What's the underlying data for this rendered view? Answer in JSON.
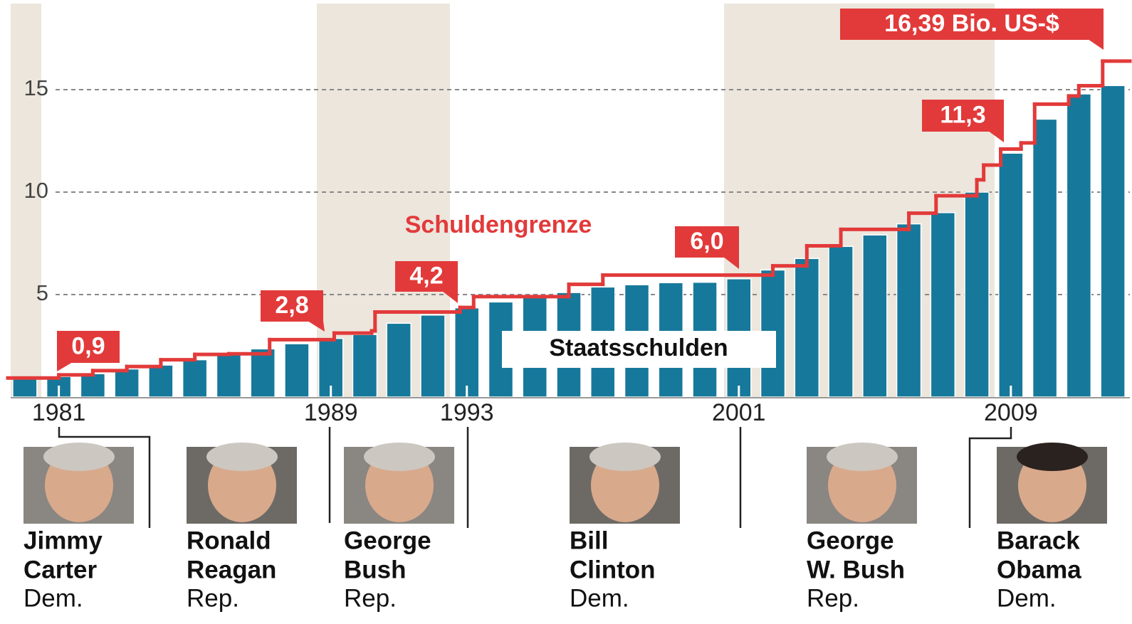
{
  "chart_data": {
    "type": "bar",
    "x": [
      1980,
      1981,
      1982,
      1983,
      1984,
      1985,
      1986,
      1987,
      1988,
      1989,
      1990,
      1991,
      1992,
      1993,
      1994,
      1995,
      1996,
      1997,
      1998,
      1999,
      2000,
      2001,
      2002,
      2003,
      2004,
      2005,
      2006,
      2007,
      2008,
      2009,
      2010,
      2011,
      2012
    ],
    "series": [
      {
        "name": "Staatsschulden",
        "color": "#16799b",
        "values": [
          0.91,
          1.0,
          1.14,
          1.37,
          1.56,
          1.82,
          2.12,
          2.35,
          2.6,
          2.86,
          3.05,
          3.6,
          4.0,
          4.35,
          4.64,
          4.85,
          5.1,
          5.37,
          5.48,
          5.58,
          5.6,
          5.77,
          6.2,
          6.76,
          7.35,
          7.91,
          8.45,
          9.0,
          10.0,
          11.9,
          13.56,
          14.79,
          15.2
        ]
      },
      {
        "name": "Schuldengrenze",
        "color": "#e23a3a",
        "x": [
          1979.5,
          1981.0,
          1982.0,
          1983.0,
          1984.0,
          1985.0,
          1986.0,
          1987.2,
          1989.1,
          1990.2,
          1990.3,
          1992.8,
          1993.2,
          1996.0,
          1997.0,
          2002.0,
          2003.0,
          2004.0,
          2006.0,
          2006.8,
          2008.0,
          2008.2,
          2008.7,
          2009.3,
          2009.7,
          2010.7,
          2011.0,
          2011.7
        ],
        "values": [
          0.93,
          1.08,
          1.29,
          1.49,
          1.82,
          2.08,
          2.11,
          2.8,
          3.12,
          3.23,
          4.15,
          4.37,
          4.9,
          5.5,
          5.95,
          6.4,
          7.38,
          8.18,
          8.97,
          9.82,
          10.6,
          11.32,
          12.1,
          12.4,
          14.29,
          14.69,
          15.19,
          16.39
        ]
      }
    ],
    "xlim": [
      1979.5,
      2012.5
    ],
    "xticks": [
      1981,
      1989,
      1993,
      2001,
      2009
    ],
    "ylim": [
      0,
      19.2
    ],
    "yticks": [
      5,
      10,
      15
    ],
    "grid": true,
    "annotations": [
      {
        "text": "0,9"
      },
      {
        "text": "2,8"
      },
      {
        "text": "4,2"
      },
      {
        "text": "6,0"
      },
      {
        "text": "11,3"
      },
      {
        "text": "16,39 Bio. US-$"
      }
    ]
  },
  "presidents": [
    {
      "name": [
        "Jimmy",
        "Carter"
      ],
      "party": "Dem."
    },
    {
      "name": [
        "Ronald",
        "Reagan"
      ],
      "party": "Rep."
    },
    {
      "name": [
        "George",
        "Bush"
      ],
      "party": "Rep."
    },
    {
      "name": [
        "Bill",
        "Clinton"
      ],
      "party": "Dem."
    },
    {
      "name": [
        "George",
        "W. Bush"
      ],
      "party": "Rep."
    },
    {
      "name": [
        "Barack",
        "Obama"
      ],
      "party": "Dem."
    }
  ]
}
